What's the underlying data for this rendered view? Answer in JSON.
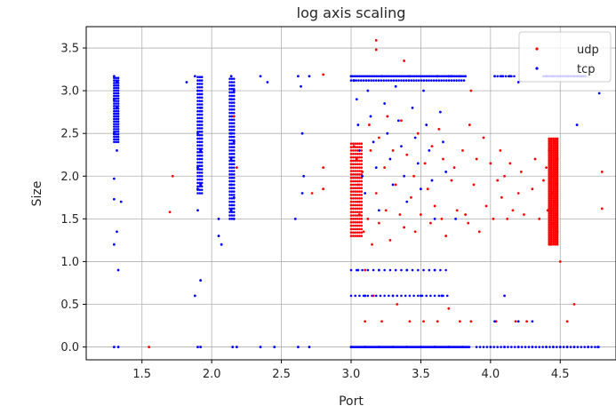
{
  "chart_data": {
    "type": "scatter",
    "title": "log axis scaling",
    "xlabel": "Port",
    "ylabel": "Size",
    "xlim": [
      1.1,
      4.9
    ],
    "ylim": [
      -0.15,
      3.75
    ],
    "xticks": [
      "1.5",
      "2.0",
      "2.5",
      "3.0",
      "3.5",
      "4.0",
      "4.5"
    ],
    "yticks": [
      "0.0",
      "0.5",
      "1.0",
      "1.5",
      "2.0",
      "2.5",
      "3.0",
      "3.5"
    ],
    "grid": true,
    "legend_position": "top-right",
    "series": [
      {
        "name": "udp",
        "color": "#ff0000",
        "points": [
          [
            3.18,
            3.59
          ],
          [
            3.18,
            3.48
          ],
          [
            3.38,
            3.35
          ],
          [
            2.8,
            3.19
          ],
          [
            3.86,
            3.0
          ],
          [
            1.55,
            0.0
          ],
          [
            1.7,
            1.58
          ],
          [
            1.72,
            2.0
          ],
          [
            2.16,
            2.7
          ],
          [
            2.18,
            2.1
          ],
          [
            2.72,
            1.8
          ],
          [
            2.8,
            2.1
          ],
          [
            2.8,
            1.85
          ],
          [
            3.02,
            2.35
          ],
          [
            3.04,
            2.2
          ],
          [
            3.05,
            1.9
          ],
          [
            3.06,
            1.7
          ],
          [
            3.06,
            1.55
          ],
          [
            3.08,
            2.05
          ],
          [
            3.09,
            1.35
          ],
          [
            3.1,
            0.9
          ],
          [
            3.1,
            0.3
          ],
          [
            3.12,
            1.5
          ],
          [
            3.13,
            2.6
          ],
          [
            3.14,
            2.3
          ],
          [
            3.15,
            1.2
          ],
          [
            3.16,
            0.6
          ],
          [
            3.18,
            1.8
          ],
          [
            3.2,
            2.45
          ],
          [
            3.2,
            1.45
          ],
          [
            3.22,
            0.3
          ],
          [
            3.24,
            2.1
          ],
          [
            3.25,
            1.6
          ],
          [
            3.26,
            2.7
          ],
          [
            3.28,
            1.25
          ],
          [
            3.3,
            2.3
          ],
          [
            3.32,
            1.9
          ],
          [
            3.33,
            0.5
          ],
          [
            3.35,
            1.55
          ],
          [
            3.36,
            2.65
          ],
          [
            3.38,
            1.4
          ],
          [
            3.4,
            2.25
          ],
          [
            3.42,
            0.3
          ],
          [
            3.43,
            1.75
          ],
          [
            3.45,
            2.0
          ],
          [
            3.46,
            1.35
          ],
          [
            3.48,
            2.5
          ],
          [
            3.5,
            1.55
          ],
          [
            3.52,
            0.3
          ],
          [
            3.53,
            2.15
          ],
          [
            3.55,
            1.85
          ],
          [
            3.57,
            1.45
          ],
          [
            3.58,
            2.35
          ],
          [
            3.6,
            1.65
          ],
          [
            3.62,
            0.3
          ],
          [
            3.63,
            2.55
          ],
          [
            3.65,
            1.5
          ],
          [
            3.66,
            2.2
          ],
          [
            3.68,
            1.3
          ],
          [
            3.7,
            0.45
          ],
          [
            3.72,
            1.95
          ],
          [
            3.74,
            2.1
          ],
          [
            3.76,
            1.6
          ],
          [
            3.78,
            0.3
          ],
          [
            3.8,
            2.3
          ],
          [
            3.82,
            1.55
          ],
          [
            3.84,
            1.45
          ],
          [
            3.85,
            2.6
          ],
          [
            3.86,
            0.3
          ],
          [
            3.88,
            1.9
          ],
          [
            3.9,
            2.2
          ],
          [
            3.92,
            1.35
          ],
          [
            3.95,
            2.45
          ],
          [
            3.97,
            1.65
          ],
          [
            4.0,
            2.15
          ],
          [
            4.02,
            1.5
          ],
          [
            4.04,
            0.3
          ],
          [
            4.05,
            1.95
          ],
          [
            4.07,
            2.3
          ],
          [
            4.08,
            1.75
          ],
          [
            4.1,
            2.0
          ],
          [
            4.12,
            1.5
          ],
          [
            4.14,
            2.15
          ],
          [
            4.16,
            1.6
          ],
          [
            4.18,
            0.3
          ],
          [
            4.2,
            1.8
          ],
          [
            4.22,
            2.05
          ],
          [
            4.24,
            1.55
          ],
          [
            4.26,
            0.3
          ],
          [
            4.3,
            1.85
          ],
          [
            4.32,
            2.2
          ],
          [
            4.35,
            1.5
          ],
          [
            4.38,
            1.95
          ],
          [
            4.4,
            2.1
          ],
          [
            4.41,
            1.6
          ],
          [
            4.42,
            2.3
          ],
          [
            4.43,
            1.2
          ],
          [
            4.44,
            1.8
          ],
          [
            4.45,
            2.0
          ],
          [
            4.45,
            1.45
          ],
          [
            4.46,
            2.4
          ],
          [
            4.46,
            1.7
          ],
          [
            4.47,
            1.9
          ],
          [
            4.47,
            1.55
          ],
          [
            4.48,
            2.2
          ],
          [
            4.48,
            1.35
          ],
          [
            4.5,
            1.0
          ],
          [
            4.55,
            0.3
          ],
          [
            4.6,
            0.5
          ],
          [
            4.8,
            2.05
          ],
          [
            4.8,
            1.62
          ]
        ]
      },
      {
        "name": "tcp",
        "color": "#0000ff",
        "points": [
          [
            1.3,
            3.17
          ],
          [
            1.3,
            2.9
          ],
          [
            1.3,
            2.5
          ],
          [
            1.3,
            1.97
          ],
          [
            1.3,
            1.73
          ],
          [
            1.3,
            1.2
          ],
          [
            1.32,
            3.1
          ],
          [
            1.32,
            2.8
          ],
          [
            1.32,
            2.3
          ],
          [
            1.32,
            1.35
          ],
          [
            1.33,
            0.9
          ],
          [
            1.35,
            1.7
          ],
          [
            1.3,
            0.0
          ],
          [
            1.33,
            0.0
          ],
          [
            1.88,
            3.17
          ],
          [
            1.88,
            0.6
          ],
          [
            1.9,
            3.0
          ],
          [
            1.9,
            2.5
          ],
          [
            1.9,
            2.1
          ],
          [
            1.9,
            1.85
          ],
          [
            1.9,
            1.6
          ],
          [
            1.92,
            2.8
          ],
          [
            1.92,
            2.3
          ],
          [
            1.92,
            1.9
          ],
          [
            1.92,
            0.78
          ],
          [
            1.9,
            0.0
          ],
          [
            1.92,
            0.0
          ],
          [
            1.82,
            3.1
          ],
          [
            2.14,
            3.17
          ],
          [
            2.14,
            2.9
          ],
          [
            2.14,
            2.5
          ],
          [
            2.14,
            2.2
          ],
          [
            2.14,
            1.9
          ],
          [
            2.14,
            1.6
          ],
          [
            2.16,
            3.0
          ],
          [
            2.16,
            2.4
          ],
          [
            2.16,
            1.75
          ],
          [
            2.16,
            1.5
          ],
          [
            2.05,
            1.3
          ],
          [
            2.07,
            1.2
          ],
          [
            2.05,
            1.5
          ],
          [
            2.15,
            0.0
          ],
          [
            2.18,
            0.0
          ],
          [
            2.35,
            3.17
          ],
          [
            2.4,
            3.1
          ],
          [
            2.35,
            0.0
          ],
          [
            2.45,
            0.0
          ],
          [
            2.62,
            3.17
          ],
          [
            2.64,
            3.05
          ],
          [
            2.65,
            2.5
          ],
          [
            2.66,
            2.0
          ],
          [
            2.65,
            1.8
          ],
          [
            2.6,
            1.5
          ],
          [
            2.7,
            3.17
          ],
          [
            2.62,
            0.0
          ],
          [
            2.7,
            0.0
          ],
          [
            3.0,
            3.17
          ],
          [
            3.02,
            3.12
          ],
          [
            3.04,
            2.9
          ],
          [
            3.05,
            2.6
          ],
          [
            3.06,
            2.3
          ],
          [
            3.08,
            2.0
          ],
          [
            3.1,
            1.8
          ],
          [
            3.12,
            3.0
          ],
          [
            3.14,
            2.7
          ],
          [
            3.16,
            2.4
          ],
          [
            3.18,
            2.1
          ],
          [
            3.2,
            1.6
          ],
          [
            3.22,
            3.17
          ],
          [
            3.24,
            2.85
          ],
          [
            3.26,
            2.5
          ],
          [
            3.28,
            2.2
          ],
          [
            3.3,
            1.9
          ],
          [
            3.32,
            3.05
          ],
          [
            3.34,
            2.65
          ],
          [
            3.36,
            2.35
          ],
          [
            3.38,
            2.0
          ],
          [
            3.4,
            1.7
          ],
          [
            3.42,
            3.17
          ],
          [
            3.44,
            2.8
          ],
          [
            3.46,
            2.45
          ],
          [
            3.48,
            2.15
          ],
          [
            3.5,
            1.85
          ],
          [
            3.52,
            3.0
          ],
          [
            3.54,
            2.6
          ],
          [
            3.56,
            2.3
          ],
          [
            3.58,
            1.95
          ],
          [
            3.6,
            1.5
          ],
          [
            3.62,
            3.17
          ],
          [
            3.64,
            2.75
          ],
          [
            3.66,
            2.4
          ],
          [
            3.68,
            2.05
          ],
          [
            3.7,
            3.17
          ],
          [
            3.05,
            0.9
          ],
          [
            3.1,
            0.6
          ],
          [
            3.2,
            0.9
          ],
          [
            3.3,
            0.6
          ],
          [
            3.4,
            0.9
          ],
          [
            3.5,
            0.6
          ],
          [
            3.6,
            0.9
          ],
          [
            3.65,
            0.6
          ],
          [
            3.72,
            3.17
          ],
          [
            3.78,
            3.17
          ],
          [
            3.82,
            3.17
          ],
          [
            3.75,
            1.5
          ],
          [
            3.0,
            0.0
          ],
          [
            3.1,
            0.0
          ],
          [
            3.2,
            0.0
          ],
          [
            3.3,
            0.0
          ],
          [
            3.4,
            0.0
          ],
          [
            3.5,
            0.0
          ],
          [
            3.6,
            0.0
          ],
          [
            3.7,
            0.0
          ],
          [
            3.8,
            0.0
          ],
          [
            4.03,
            3.17
          ],
          [
            4.08,
            3.17
          ],
          [
            4.14,
            3.17
          ],
          [
            4.2,
            3.1
          ],
          [
            4.03,
            0.3
          ],
          [
            4.1,
            0.6
          ],
          [
            4.2,
            0.3
          ],
          [
            4.3,
            0.3
          ],
          [
            4.4,
            3.17
          ],
          [
            4.45,
            3.17
          ],
          [
            4.5,
            3.17
          ],
          [
            4.55,
            3.17
          ],
          [
            4.6,
            3.17
          ],
          [
            4.65,
            3.17
          ],
          [
            4.62,
            2.6
          ],
          [
            4.4,
            0.0
          ],
          [
            4.45,
            0.0
          ],
          [
            4.5,
            0.0
          ],
          [
            4.55,
            0.0
          ],
          [
            4.6,
            0.0
          ],
          [
            4.7,
            0.0
          ],
          [
            4.77,
            0.0
          ],
          [
            4.78,
            2.97
          ],
          [
            4.0,
            0.0
          ],
          [
            4.1,
            0.0
          ],
          [
            4.2,
            0.0
          ],
          [
            4.3,
            0.0
          ]
        ]
      }
    ],
    "dense_regions": [
      {
        "series": "tcp",
        "x_start": 3.0,
        "x_end": 3.82,
        "y": 3.17,
        "spacing": 0.012
      },
      {
        "series": "tcp",
        "x_start": 3.0,
        "x_end": 3.82,
        "y": 3.12,
        "spacing": 0.018
      },
      {
        "series": "tcp",
        "x_start": 3.0,
        "x_end": 3.85,
        "y": 0.0,
        "spacing": 0.008
      },
      {
        "series": "tcp",
        "x_start": 3.9,
        "x_end": 4.78,
        "y": 0.0,
        "spacing": 0.025
      },
      {
        "series": "tcp",
        "x_start": 3.0,
        "x_end": 3.7,
        "y": 0.6,
        "spacing": 0.03
      },
      {
        "series": "tcp",
        "x_start": 3.0,
        "x_end": 3.7,
        "y": 0.9,
        "spacing": 0.04
      },
      {
        "series": "tcp",
        "x_start": 4.38,
        "x_end": 4.68,
        "y": 3.17,
        "spacing": 0.015
      },
      {
        "series": "tcp",
        "x_start": 4.03,
        "x_end": 4.18,
        "y": 3.17,
        "spacing": 0.02
      },
      {
        "series": "udp",
        "x_start": 4.42,
        "x_end": 4.48,
        "y_start": 1.2,
        "y_end": 2.45,
        "spacing": 0.02,
        "vertical": true
      },
      {
        "series": "udp",
        "x_start": 3.0,
        "x_end": 3.08,
        "y_start": 1.3,
        "y_end": 2.4,
        "spacing": 0.04,
        "vertical": true
      },
      {
        "series": "tcp",
        "x_start": 1.3,
        "x_end": 1.34,
        "y_start": 2.4,
        "y_end": 3.17,
        "spacing": 0.03,
        "vertical": true
      },
      {
        "series": "tcp",
        "x_start": 1.9,
        "x_end": 1.93,
        "y_start": 1.8,
        "y_end": 3.17,
        "spacing": 0.04,
        "vertical": true
      },
      {
        "series": "tcp",
        "x_start": 2.13,
        "x_end": 2.17,
        "y_start": 1.5,
        "y_end": 3.17,
        "spacing": 0.04,
        "vertical": true
      }
    ]
  }
}
